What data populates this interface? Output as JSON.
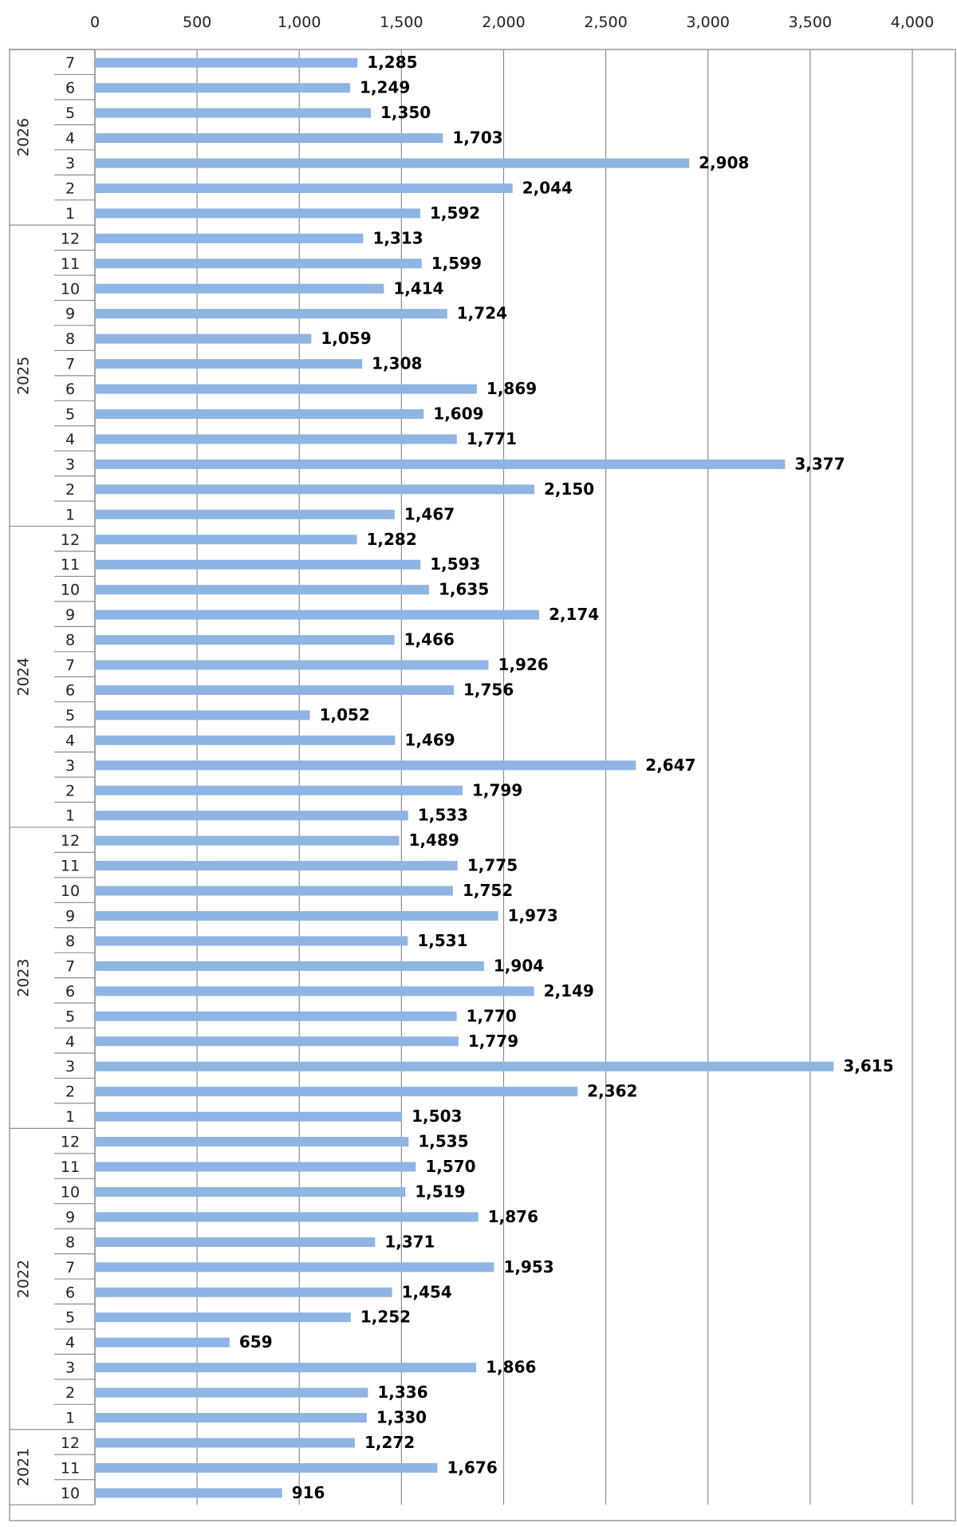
{
  "chart_data": {
    "type": "bar",
    "orientation": "horizontal",
    "xlim": [
      0,
      4000
    ],
    "x_ticks": [
      "0",
      "500",
      "1,000",
      "1,500",
      "2,000",
      "2,500",
      "3,000",
      "3,500",
      "4,000"
    ],
    "x_tick_values": [
      0,
      500,
      1000,
      1500,
      2000,
      2500,
      3000,
      3500,
      4000
    ],
    "grid": true,
    "bar_color": "#8EB4E3",
    "groups": [
      {
        "year": "2026",
        "bars": [
          {
            "month": "7",
            "value": 1285,
            "label": "1,285"
          },
          {
            "month": "6",
            "value": 1249,
            "label": "1,249"
          },
          {
            "month": "5",
            "value": 1350,
            "label": "1,350"
          },
          {
            "month": "4",
            "value": 1703,
            "label": "1,703"
          },
          {
            "month": "3",
            "value": 2908,
            "label": "2,908"
          },
          {
            "month": "2",
            "value": 2044,
            "label": "2,044"
          },
          {
            "month": "1",
            "value": 1592,
            "label": "1,592"
          }
        ]
      },
      {
        "year": "2025",
        "bars": [
          {
            "month": "12",
            "value": 1313,
            "label": "1,313"
          },
          {
            "month": "11",
            "value": 1599,
            "label": "1,599"
          },
          {
            "month": "10",
            "value": 1414,
            "label": "1,414"
          },
          {
            "month": "9",
            "value": 1724,
            "label": "1,724"
          },
          {
            "month": "8",
            "value": 1059,
            "label": "1,059"
          },
          {
            "month": "7",
            "value": 1308,
            "label": "1,308"
          },
          {
            "month": "6",
            "value": 1869,
            "label": "1,869"
          },
          {
            "month": "5",
            "value": 1609,
            "label": "1,609"
          },
          {
            "month": "4",
            "value": 1771,
            "label": "1,771"
          },
          {
            "month": "3",
            "value": 3377,
            "label": "3,377"
          },
          {
            "month": "2",
            "value": 2150,
            "label": "2,150"
          },
          {
            "month": "1",
            "value": 1467,
            "label": "1,467"
          }
        ]
      },
      {
        "year": "2024",
        "bars": [
          {
            "month": "12",
            "value": 1282,
            "label": "1,282"
          },
          {
            "month": "11",
            "value": 1593,
            "label": "1,593"
          },
          {
            "month": "10",
            "value": 1635,
            "label": "1,635"
          },
          {
            "month": "9",
            "value": 2174,
            "label": "2,174"
          },
          {
            "month": "8",
            "value": 1466,
            "label": "1,466"
          },
          {
            "month": "7",
            "value": 1926,
            "label": "1,926"
          },
          {
            "month": "6",
            "value": 1756,
            "label": "1,756"
          },
          {
            "month": "5",
            "value": 1052,
            "label": "1,052"
          },
          {
            "month": "4",
            "value": 1469,
            "label": "1,469"
          },
          {
            "month": "3",
            "value": 2647,
            "label": "2,647"
          },
          {
            "month": "2",
            "value": 1799,
            "label": "1,799"
          },
          {
            "month": "1",
            "value": 1533,
            "label": "1,533"
          }
        ]
      },
      {
        "year": "2023",
        "bars": [
          {
            "month": "12",
            "value": 1489,
            "label": "1,489"
          },
          {
            "month": "11",
            "value": 1775,
            "label": "1,775"
          },
          {
            "month": "10",
            "value": 1752,
            "label": "1,752"
          },
          {
            "month": "9",
            "value": 1973,
            "label": "1,973"
          },
          {
            "month": "8",
            "value": 1531,
            "label": "1,531"
          },
          {
            "month": "7",
            "value": 1904,
            "label": "1,904"
          },
          {
            "month": "6",
            "value": 2149,
            "label": "2,149"
          },
          {
            "month": "5",
            "value": 1770,
            "label": "1,770"
          },
          {
            "month": "4",
            "value": 1779,
            "label": "1,779"
          },
          {
            "month": "3",
            "value": 3615,
            "label": "3,615"
          },
          {
            "month": "2",
            "value": 2362,
            "label": "2,362"
          },
          {
            "month": "1",
            "value": 1503,
            "label": "1,503"
          }
        ]
      },
      {
        "year": "2022",
        "bars": [
          {
            "month": "12",
            "value": 1535,
            "label": "1,535"
          },
          {
            "month": "11",
            "value": 1570,
            "label": "1,570"
          },
          {
            "month": "10",
            "value": 1519,
            "label": "1,519"
          },
          {
            "month": "9",
            "value": 1876,
            "label": "1,876"
          },
          {
            "month": "8",
            "value": 1371,
            "label": "1,371"
          },
          {
            "month": "7",
            "value": 1953,
            "label": "1,953"
          },
          {
            "month": "6",
            "value": 1454,
            "label": "1,454"
          },
          {
            "month": "5",
            "value": 1252,
            "label": "1,252"
          },
          {
            "month": "4",
            "value": 659,
            "label": "659"
          },
          {
            "month": "3",
            "value": 1866,
            "label": "1,866"
          },
          {
            "month": "2",
            "value": 1336,
            "label": "1,336"
          },
          {
            "month": "1",
            "value": 1330,
            "label": "1,330"
          }
        ]
      },
      {
        "year": "2021",
        "bars": [
          {
            "month": "12",
            "value": 1272,
            "label": "1,272"
          },
          {
            "month": "11",
            "value": 1676,
            "label": "1,676"
          },
          {
            "month": "10",
            "value": 916,
            "label": "916"
          }
        ]
      }
    ]
  }
}
